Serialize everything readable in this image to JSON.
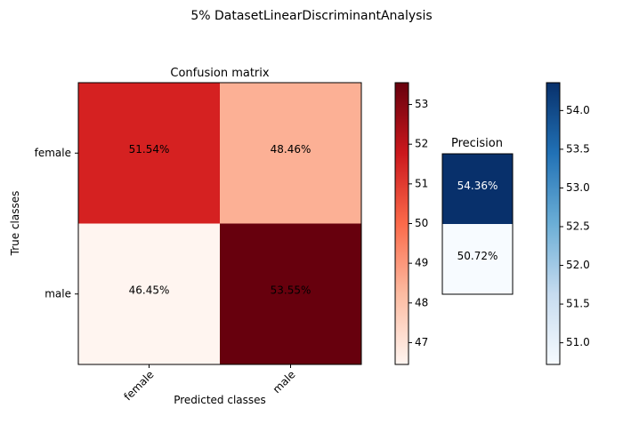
{
  "title": "5% DatasetLinearDiscriminantAnalysis",
  "chart_data": [
    {
      "type": "heatmap",
      "title": "Confusion matrix",
      "xlabel": "Predicted classes",
      "ylabel": "True classes",
      "x_categories": [
        "female",
        "male"
      ],
      "y_categories": [
        "female",
        "male"
      ],
      "values": [
        [
          51.54,
          48.46
        ],
        [
          46.45,
          53.55
        ]
      ],
      "cell_labels": [
        [
          "51.54%",
          "48.46%"
        ],
        [
          "46.45%",
          "53.55%"
        ]
      ],
      "colormap": "Reds",
      "colorbar": {
        "range": [
          46.45,
          53.55
        ],
        "ticks": [
          47,
          48,
          49,
          50,
          51,
          52,
          53
        ],
        "tick_labels": [
          "47",
          "48",
          "49",
          "50",
          "51",
          "52",
          "53"
        ]
      }
    },
    {
      "type": "heatmap",
      "title": "Precision",
      "y_categories": [
        "female",
        "male"
      ],
      "values": [
        [
          54.36
        ],
        [
          50.72
        ]
      ],
      "cell_labels": [
        [
          "54.36%"
        ],
        [
          "50.72%"
        ]
      ],
      "colormap": "Blues",
      "colorbar": {
        "range": [
          50.72,
          54.36
        ],
        "ticks": [
          51.0,
          51.5,
          52.0,
          52.5,
          53.0,
          53.5,
          54.0
        ],
        "tick_labels": [
          "51.0",
          "51.5",
          "52.0",
          "52.5",
          "53.0",
          "53.5",
          "54.0"
        ]
      }
    }
  ]
}
